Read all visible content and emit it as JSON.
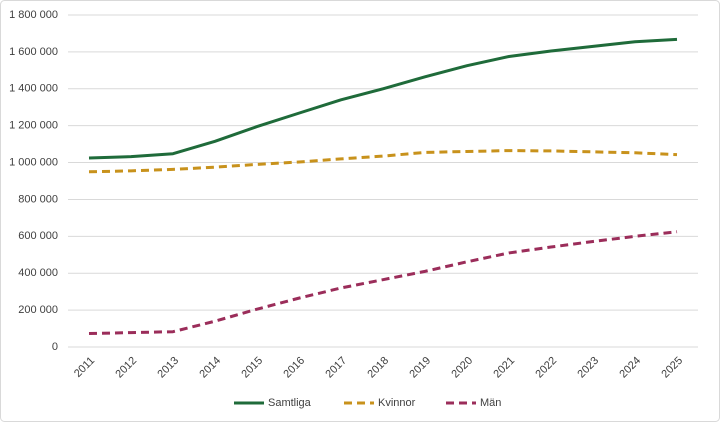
{
  "chart_data": {
    "type": "line",
    "categories": [
      "2011",
      "2012",
      "2013",
      "2014",
      "2015",
      "2016",
      "2017",
      "2018",
      "2019",
      "2020",
      "2021",
      "2022",
      "2023",
      "2024",
      "2025"
    ],
    "series": [
      {
        "name": "Samtliga",
        "color": "#1f6b3a",
        "dashed": false,
        "values": [
          1025000,
          1032000,
          1048000,
          1115000,
          1195000,
          1268000,
          1340000,
          1400000,
          1465000,
          1525000,
          1575000,
          1605000,
          1630000,
          1655000,
          1668000
        ]
      },
      {
        "name": "Kvinnor",
        "color": "#c8921c",
        "dashed": true,
        "values": [
          950000,
          955000,
          963000,
          975000,
          990000,
          1003000,
          1020000,
          1035000,
          1055000,
          1060000,
          1065000,
          1063000,
          1058000,
          1053000,
          1043000
        ]
      },
      {
        "name": "Män",
        "color": "#9b2d5a",
        "dashed": true,
        "values": [
          73000,
          78000,
          83000,
          140000,
          205000,
          265000,
          320000,
          365000,
          410000,
          462000,
          510000,
          542000,
          572000,
          600000,
          625000
        ]
      }
    ],
    "ylim": [
      0,
      1800000
    ],
    "yticks": [
      0,
      {
        "value": 200000,
        "label": "200 000"
      },
      {
        "value": 400000,
        "label": "400 000"
      },
      {
        "value": 600000,
        "label": "600 000"
      },
      {
        "value": 800000,
        "label": "800 000"
      },
      {
        "value": 1000000,
        "label": "1 000 000"
      },
      {
        "value": 1200000,
        "label": "1 200 000"
      },
      {
        "value": 1400000,
        "label": "1 400 000"
      },
      {
        "value": 1600000,
        "label": "1 600 000"
      },
      {
        "value": 1800000,
        "label": "1 800 000"
      }
    ],
    "grid": true,
    "legend": "bottom"
  }
}
